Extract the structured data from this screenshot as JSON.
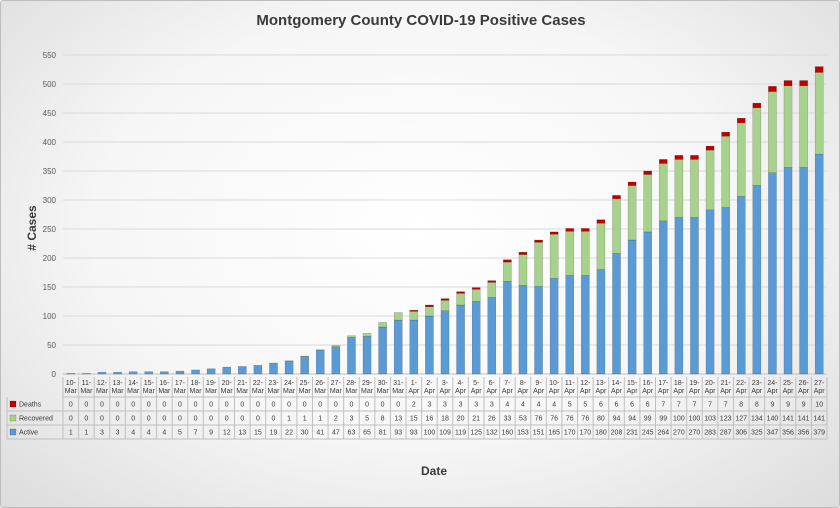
{
  "chart_data": {
    "type": "bar",
    "stacked": true,
    "title": "Montgomery County COVID-19 Positive Cases",
    "xlabel": "Date",
    "ylabel": "# Cases",
    "ylim": [
      0,
      550
    ],
    "yticks": [
      0,
      50,
      100,
      150,
      200,
      250,
      300,
      350,
      400,
      450,
      500,
      550
    ],
    "grid": true,
    "legend_placement": "left of data table",
    "categories": [
      "10-Mar",
      "11-Mar",
      "12-Mar",
      "13-Mar",
      "14-Mar",
      "15-Mar",
      "16-Mar",
      "17-Mar",
      "18-Mar",
      "19-Mar",
      "20-Mar",
      "21-Mar",
      "22-Mar",
      "23-Mar",
      "24-Mar",
      "25-Mar",
      "26-Mar",
      "27-Mar",
      "28-Mar",
      "29-Mar",
      "30-Mar",
      "31-Mar",
      "1-Apr",
      "2-Apr",
      "3-Apr",
      "4-Apr",
      "5-Apr",
      "6-Apr",
      "7-Apr",
      "8-Apr",
      "9-Apr",
      "10-Apr",
      "11-Apr",
      "12-Apr",
      "13-Apr",
      "14-Apr",
      "15-Apr",
      "16-Apr",
      "17-Apr",
      "18-Apr",
      "19-Apr",
      "20-Apr",
      "21-Apr",
      "22-Apr",
      "23-Apr",
      "24-Apr",
      "25-Apr",
      "26-Apr",
      "27-Apr"
    ],
    "series": [
      {
        "name": "Deaths",
        "color": "#c00000",
        "values": [
          0,
          0,
          0,
          0,
          0,
          0,
          0,
          0,
          0,
          0,
          0,
          0,
          0,
          0,
          0,
          0,
          0,
          0,
          0,
          0,
          0,
          0,
          2,
          3,
          3,
          3,
          3,
          3,
          4,
          4,
          4,
          4,
          5,
          5,
          6,
          6,
          6,
          6,
          7,
          7,
          7,
          7,
          7,
          8,
          8,
          9,
          9,
          9,
          10
        ]
      },
      {
        "name": "Recovered",
        "color": "#a9d18e",
        "values": [
          0,
          0,
          0,
          0,
          0,
          0,
          0,
          0,
          0,
          0,
          0,
          0,
          0,
          0,
          1,
          1,
          1,
          2,
          3,
          5,
          8,
          13,
          15,
          16,
          18,
          20,
          21,
          26,
          33,
          53,
          76,
          76,
          76,
          76,
          80,
          94,
          94,
          99,
          99,
          100,
          100,
          103,
          123,
          127,
          134,
          140,
          141,
          141,
          141
        ]
      },
      {
        "name": "Active",
        "color": "#5b9bd5",
        "values": [
          1,
          1,
          3,
          3,
          4,
          4,
          4,
          5,
          7,
          9,
          12,
          13,
          15,
          19,
          22,
          30,
          41,
          47,
          63,
          65,
          81,
          93,
          93,
          100,
          109,
          119,
          125,
          132,
          160,
          153,
          151,
          165,
          170,
          170,
          180,
          208,
          231,
          245,
          264,
          270,
          270,
          283,
          287,
          306,
          325,
          347,
          356,
          356,
          379
        ]
      }
    ]
  }
}
